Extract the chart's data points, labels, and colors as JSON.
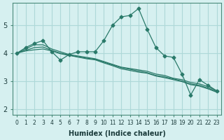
{
  "xlabel": "Humidex (Indice chaleur)",
  "ylabel": "",
  "background_color": "#d6f0f0",
  "grid_color": "#aed8d8",
  "line_color": "#2a7a6a",
  "xlim": [
    -0.5,
    23.5
  ],
  "ylim": [
    1.8,
    5.8
  ],
  "yticks": [
    2,
    3,
    4,
    5
  ],
  "xticks": [
    0,
    1,
    2,
    3,
    4,
    5,
    6,
    7,
    8,
    9,
    10,
    11,
    12,
    13,
    14,
    15,
    16,
    17,
    18,
    19,
    20,
    21,
    22,
    23
  ],
  "lines": [
    {
      "x": [
        0,
        1,
        2,
        3,
        4,
        5,
        6,
        7,
        8,
        9,
        10,
        11,
        12,
        13,
        14,
        15,
        16,
        17,
        18,
        19,
        20,
        21,
        22,
        23
      ],
      "y": [
        4.0,
        4.2,
        4.35,
        4.45,
        4.05,
        3.75,
        3.95,
        4.05,
        4.05,
        4.05,
        4.45,
        5.0,
        5.3,
        5.35,
        5.6,
        4.85,
        4.2,
        3.9,
        3.85,
        3.25,
        2.5,
        3.05,
        2.85,
        2.65
      ],
      "marker": "D",
      "markersize": 2.5
    },
    {
      "x": [
        0,
        1,
        2,
        3,
        4,
        5,
        6,
        7,
        8,
        9,
        10,
        11,
        12,
        13,
        14,
        15,
        16,
        17,
        18,
        19,
        20,
        21,
        22,
        23
      ],
      "y": [
        4.0,
        4.15,
        4.3,
        4.3,
        4.15,
        4.05,
        3.95,
        3.9,
        3.85,
        3.8,
        3.7,
        3.6,
        3.5,
        3.45,
        3.4,
        3.35,
        3.25,
        3.2,
        3.1,
        3.05,
        2.95,
        2.9,
        2.8,
        2.65
      ],
      "marker": null,
      "markersize": 0
    },
    {
      "x": [
        0,
        1,
        2,
        3,
        4,
        5,
        6,
        7,
        8,
        9,
        10,
        11,
        12,
        13,
        14,
        15,
        16,
        17,
        18,
        19,
        20,
        21,
        22,
        23
      ],
      "y": [
        4.0,
        4.1,
        4.2,
        4.22,
        4.1,
        4.0,
        3.93,
        3.87,
        3.82,
        3.78,
        3.68,
        3.58,
        3.48,
        3.42,
        3.36,
        3.3,
        3.2,
        3.15,
        3.08,
        3.0,
        2.9,
        2.85,
        2.75,
        2.62
      ],
      "marker": null,
      "markersize": 0
    },
    {
      "x": [
        0,
        1,
        2,
        3,
        4,
        5,
        6,
        7,
        8,
        9,
        10,
        11,
        12,
        13,
        14,
        15,
        16,
        17,
        18,
        19,
        20,
        21,
        22,
        23
      ],
      "y": [
        4.0,
        4.08,
        4.12,
        4.15,
        4.08,
        3.98,
        3.92,
        3.86,
        3.8,
        3.76,
        3.65,
        3.55,
        3.44,
        3.38,
        3.32,
        3.28,
        3.18,
        3.12,
        3.05,
        2.98,
        2.87,
        2.82,
        2.72,
        2.6
      ],
      "marker": null,
      "markersize": 0
    }
  ]
}
